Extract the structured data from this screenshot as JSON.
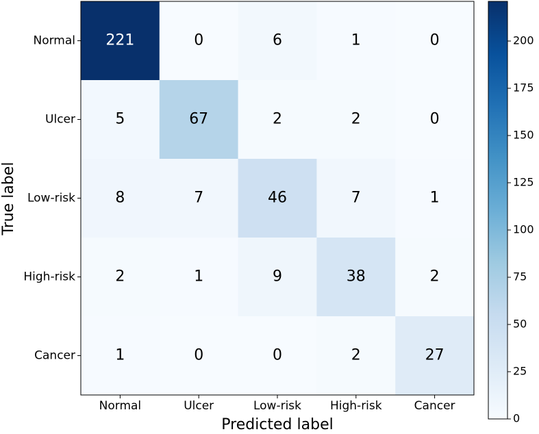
{
  "chart_data": {
    "type": "heatmap",
    "x_label": "Predicted label",
    "y_label": "True label",
    "x_categories": [
      "Normal",
      "Ulcer",
      "Low-risk",
      "High-risk",
      "Cancer"
    ],
    "y_categories": [
      "Normal",
      "Ulcer",
      "Low-risk",
      "High-risk",
      "Cancer"
    ],
    "z": [
      [
        221,
        0,
        6,
        1,
        0
      ],
      [
        5,
        67,
        2,
        2,
        0
      ],
      [
        8,
        7,
        46,
        7,
        1
      ],
      [
        2,
        1,
        9,
        38,
        2
      ],
      [
        1,
        0,
        0,
        2,
        27
      ]
    ],
    "colormap": "Blues",
    "zlim": [
      0,
      221
    ],
    "zticks": [
      0,
      25,
      50,
      75,
      100,
      125,
      150,
      175,
      200
    ]
  }
}
